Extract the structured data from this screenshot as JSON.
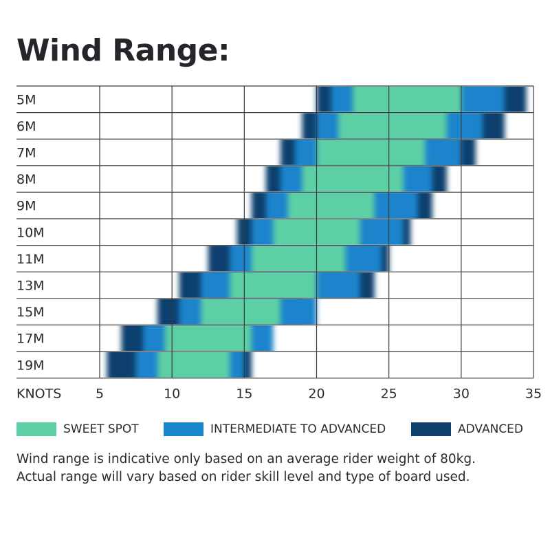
{
  "title": "Wind Range:",
  "chart_data": {
    "type": "range-bar",
    "categories": [
      "5M",
      "6M",
      "7M",
      "8M",
      "9M",
      "10M",
      "11M",
      "13M",
      "15M",
      "17M",
      "19M"
    ],
    "xlabel": "KNOTS",
    "xticks": [
      5,
      10,
      15,
      20,
      25,
      30,
      35
    ],
    "xlim": [
      5,
      35
    ],
    "grid": true,
    "legend_position": "bottom",
    "colors": {
      "sweet_spot": "#5dcfa5",
      "intermediate_to_advanced": "#1a84cc",
      "advanced": "#0f3f6e",
      "grid": "#3a3a3a"
    },
    "series": [
      {
        "name": "SWEET SPOT",
        "ranges": [
          [
            22.5,
            30
          ],
          [
            21.5,
            29
          ],
          [
            20,
            27.5
          ],
          [
            19,
            26
          ],
          [
            18,
            24
          ],
          [
            17,
            23
          ],
          [
            15.5,
            22
          ],
          [
            14,
            20
          ],
          [
            12,
            17.5
          ],
          [
            9.5,
            15.5
          ],
          [
            9,
            14
          ]
        ]
      },
      {
        "name": "INTERMEDIATE TO ADVANCED",
        "ranges": [
          [
            21,
            33
          ],
          [
            20,
            31.5
          ],
          [
            18.5,
            30
          ],
          [
            17.5,
            28
          ],
          [
            16.5,
            27
          ],
          [
            15.5,
            26
          ],
          [
            14,
            24.5
          ],
          [
            12,
            23
          ],
          [
            10.5,
            20
          ],
          [
            8,
            17
          ],
          [
            7.5,
            15
          ]
        ]
      },
      {
        "name": "ADVANCED",
        "ranges": [
          [
            20,
            34.5
          ],
          [
            19,
            33
          ],
          [
            17.5,
            31
          ],
          [
            16.5,
            29
          ],
          [
            15.5,
            28
          ],
          [
            14.5,
            26.5
          ],
          [
            12.5,
            25
          ],
          [
            10.5,
            24
          ],
          [
            9,
            19
          ],
          [
            6.5,
            16
          ],
          [
            5.5,
            15.5
          ]
        ]
      }
    ]
  },
  "legend": {
    "items": [
      {
        "label": "SWEET SPOT",
        "color": "#5dcfa5"
      },
      {
        "label": "INTERMEDIATE TO ADVANCED",
        "color": "#1a84cc"
      },
      {
        "label": "ADVANCED",
        "color": "#0f3f6e"
      }
    ]
  },
  "note": {
    "line1": "Wind range is indicative only based on an average rider weight of 80kg.",
    "line2": "Actual range will vary based on rider skill level and type of board used."
  }
}
